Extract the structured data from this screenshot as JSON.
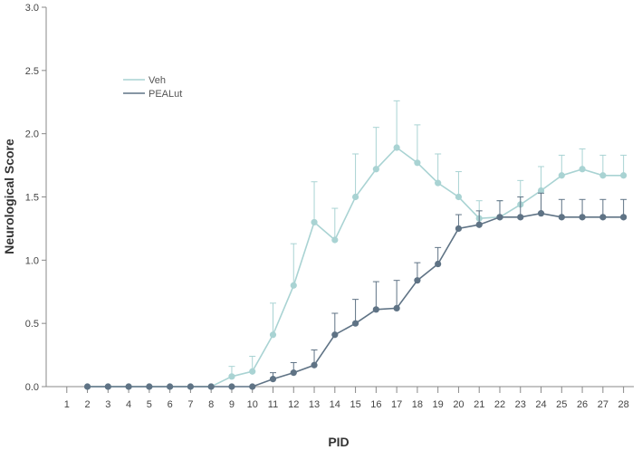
{
  "chart_data": {
    "type": "line",
    "xlabel": "PID",
    "ylabel": "Neurological Score",
    "x": [
      1,
      2,
      3,
      4,
      5,
      6,
      7,
      8,
      9,
      10,
      11,
      12,
      13,
      14,
      15,
      16,
      17,
      18,
      19,
      20,
      21,
      22,
      23,
      24,
      25,
      26,
      27,
      28
    ],
    "xlim": [
      0,
      28.5
    ],
    "ylim": [
      0,
      3.0
    ],
    "yticks": [
      "0.0",
      "0.5",
      "1.0",
      "1.5",
      "2.0",
      "2.5",
      "3.0"
    ],
    "grid": false,
    "legend_position": "top-left",
    "series": [
      {
        "name": "Veh",
        "color": "#a9d3d3",
        "x": [
          2,
          3,
          4,
          5,
          6,
          7,
          8,
          9,
          10,
          11,
          12,
          13,
          14,
          15,
          16,
          17,
          18,
          19,
          20,
          21,
          22,
          23,
          24,
          25,
          26,
          27,
          28
        ],
        "values": [
          0,
          0,
          0,
          0,
          0,
          0,
          0,
          0.08,
          0.12,
          0.41,
          0.8,
          1.3,
          1.16,
          1.5,
          1.72,
          1.89,
          1.77,
          1.61,
          1.5,
          1.33,
          1.34,
          1.44,
          1.55,
          1.67,
          1.72,
          1.67,
          1.67
        ],
        "error": [
          0,
          0,
          0,
          0,
          0,
          0,
          0,
          0.08,
          0.12,
          0.25,
          0.33,
          0.32,
          0.25,
          0.34,
          0.33,
          0.37,
          0.3,
          0.23,
          0.2,
          0.14,
          0.13,
          0.19,
          0.19,
          0.16,
          0.16,
          0.16,
          0.16
        ]
      },
      {
        "name": "PEALut",
        "color": "#5f7385",
        "x": [
          2,
          3,
          4,
          5,
          6,
          7,
          8,
          9,
          10,
          11,
          12,
          13,
          14,
          15,
          16,
          17,
          18,
          19,
          20,
          21,
          22,
          23,
          24,
          25,
          26,
          27,
          28
        ],
        "values": [
          0,
          0,
          0,
          0,
          0,
          0,
          0,
          0,
          0,
          0.06,
          0.11,
          0.17,
          0.41,
          0.5,
          0.61,
          0.62,
          0.84,
          0.97,
          1.25,
          1.28,
          1.34,
          1.34,
          1.37,
          1.34,
          1.34,
          1.34,
          1.34
        ],
        "error": [
          0,
          0,
          0,
          0,
          0,
          0,
          0,
          0,
          0,
          0.05,
          0.08,
          0.12,
          0.17,
          0.19,
          0.22,
          0.22,
          0.14,
          0.13,
          0.11,
          0.11,
          0.13,
          0.16,
          0.16,
          0.14,
          0.14,
          0.14,
          0.14
        ]
      }
    ]
  }
}
